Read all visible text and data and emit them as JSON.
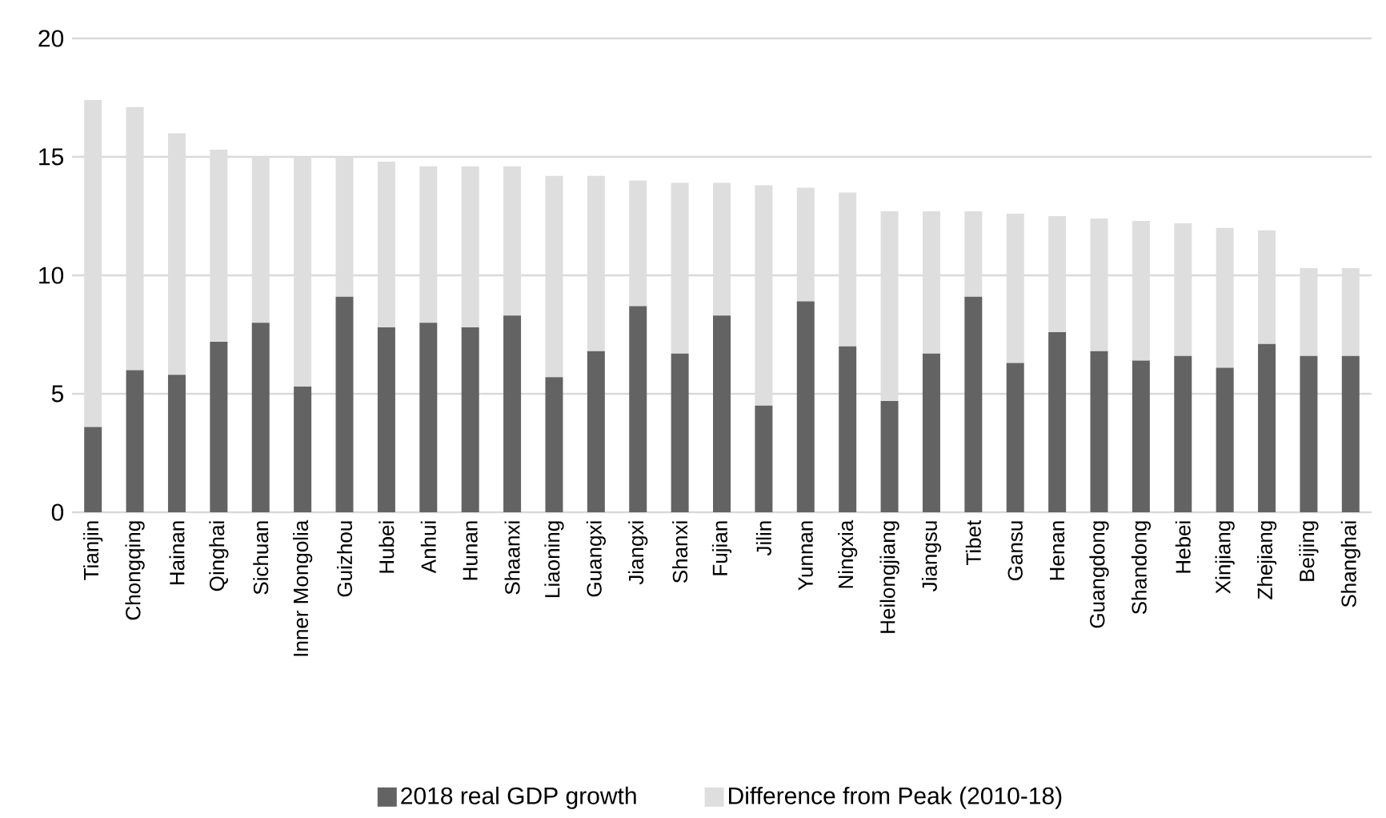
{
  "chart_data": {
    "type": "bar",
    "stacked": true,
    "categories": [
      "Tianjin",
      "Chongqing",
      "Hainan",
      "Qinghai",
      "Sichuan",
      "Inner Mongolia",
      "Guizhou",
      "Hubei",
      "Anhui",
      "Hunan",
      "Shaanxi",
      "Liaoning",
      "Guangxi",
      "Jiangxi",
      "Shanxi",
      "Fujian",
      "Jilin",
      "Yunnan",
      "Ningxia",
      "Heilongjiang",
      "Jiangsu",
      "Tibet",
      "Gansu",
      "Henan",
      "Guangdong",
      "Shandong",
      "Hebei",
      "Xinjiang",
      "Zhejiang",
      "Beijing",
      "Shanghai"
    ],
    "series": [
      {
        "name": "2018 real GDP growth",
        "color": "#636363",
        "values": [
          3.6,
          6.0,
          5.8,
          7.2,
          8.0,
          5.3,
          9.1,
          7.8,
          8.0,
          7.8,
          8.3,
          5.7,
          6.8,
          8.7,
          6.7,
          8.3,
          4.5,
          8.9,
          7.0,
          4.7,
          6.7,
          9.1,
          6.3,
          7.6,
          6.8,
          6.4,
          6.6,
          6.1,
          7.1,
          6.6,
          6.6
        ]
      },
      {
        "name": "Difference from Peak (2010-18)",
        "color": "#dddedd",
        "values": [
          13.8,
          11.1,
          10.2,
          8.1,
          7.0,
          9.7,
          5.9,
          7.0,
          6.6,
          6.8,
          6.3,
          8.5,
          7.4,
          5.3,
          7.2,
          5.6,
          9.3,
          4.8,
          6.5,
          8.0,
          6.0,
          3.6,
          6.3,
          4.9,
          5.6,
          5.9,
          5.6,
          5.9,
          4.8,
          3.7,
          3.7
        ]
      }
    ],
    "ylim": [
      0,
      20
    ],
    "yticks": [
      0,
      5,
      10,
      15,
      20
    ],
    "grid": "y",
    "legend": "bottom"
  }
}
